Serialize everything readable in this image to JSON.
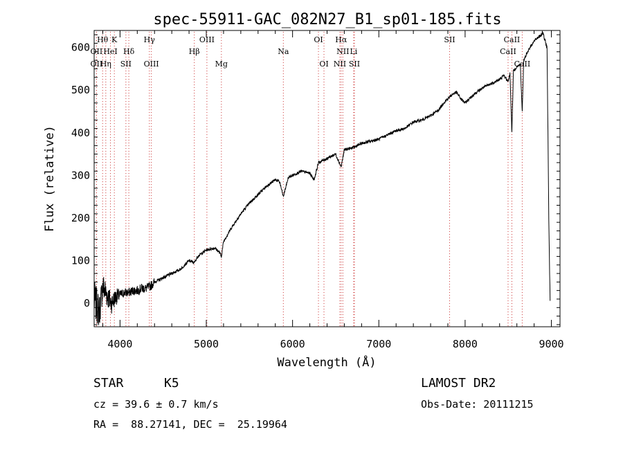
{
  "chart_data": {
    "type": "line",
    "title": "spec-55911-GAC_082N27_B1_sp01-185.fits",
    "xlabel": "Wavelength (Å)",
    "ylabel": "Flux (relative)",
    "xlim": [
      3700,
      9100
    ],
    "ylim": [
      -55,
      640
    ],
    "xticks": [
      4000,
      5000,
      6000,
      7000,
      8000,
      9000
    ],
    "yticks": [
      0,
      100,
      200,
      300,
      400,
      500,
      600
    ],
    "grid": false,
    "series": [
      {
        "x": [
          3700,
          3760,
          3800,
          3850,
          3900,
          3950,
          4000,
          4050,
          4100,
          4150,
          4200,
          4250,
          4300,
          4350,
          4400,
          4500,
          4600,
          4700,
          4800,
          4860,
          4900,
          5000,
          5100,
          5150,
          5175,
          5200,
          5300,
          5400,
          5500,
          5600,
          5700,
          5800,
          5850,
          5893,
          5950,
          6000,
          6100,
          6200,
          6250,
          6300,
          6350,
          6400,
          6500,
          6563,
          6600,
          6700,
          6800,
          6900,
          7000,
          7100,
          7200,
          7300,
          7400,
          7500,
          7600,
          7700,
          7750,
          7800,
          7850,
          7900,
          7950,
          8000,
          8100,
          8200,
          8300,
          8400,
          8450,
          8498,
          8520,
          8542,
          8560,
          8600,
          8640,
          8662,
          8680,
          8700,
          8750,
          8800,
          8850,
          8880,
          8900,
          8920,
          8950,
          8970,
          8985
        ],
        "y": [
          10,
          -20,
          40,
          20,
          0,
          15,
          20,
          25,
          25,
          30,
          30,
          35,
          35,
          40,
          50,
          60,
          70,
          80,
          100,
          95,
          110,
          125,
          130,
          120,
          110,
          145,
          180,
          210,
          235,
          255,
          275,
          290,
          285,
          250,
          295,
          300,
          310,
          305,
          290,
          330,
          335,
          340,
          350,
          320,
          360,
          365,
          375,
          380,
          385,
          395,
          405,
          410,
          425,
          430,
          440,
          455,
          470,
          480,
          490,
          495,
          480,
          470,
          490,
          505,
          515,
          525,
          535,
          520,
          540,
          400,
          545,
          555,
          560,
          450,
          570,
          580,
          600,
          615,
          625,
          630,
          635,
          620,
          600,
          200,
          10
        ]
      }
    ],
    "line_markers": [
      {
        "label": "Hθ",
        "wave": 3798,
        "row": 1
      },
      {
        "label": "OII",
        "wave": 3727,
        "row": 2
      },
      {
        "label": "HeI",
        "wave": 3889,
        "row": 2
      },
      {
        "label": "K",
        "wave": 3934,
        "row": 1
      },
      {
        "label": "Hδ",
        "wave": 4102,
        "row": 2
      },
      {
        "label": "Hγ",
        "wave": 4340,
        "row": 1
      },
      {
        "label": "OIII",
        "wave": 5007,
        "row": 1
      },
      {
        "label": "Hβ",
        "wave": 4861,
        "row": 2
      },
      {
        "label": "OI",
        "wave": 6300,
        "row": 1
      },
      {
        "label": "Hα",
        "wave": 6563,
        "row": 1
      },
      {
        "label": "NII",
        "wave": 6583,
        "row": 2
      },
      {
        "label": "Li",
        "wave": 6708,
        "row": 2
      },
      {
        "label": "SII",
        "wave": 7820,
        "row": 1
      },
      {
        "label": "CaII",
        "wave": 8542,
        "row": 1
      },
      {
        "label": "CaII",
        "wave": 8498,
        "row": 2
      },
      {
        "label": "OII",
        "wave": 3727,
        "row": 3
      },
      {
        "label": "Hη",
        "wave": 3835,
        "row": 3
      },
      {
        "label": "SII",
        "wave": 4068,
        "row": 3
      },
      {
        "label": "OIII",
        "wave": 4363,
        "row": 3
      },
      {
        "label": "Mg",
        "wave": 5175,
        "row": 3
      },
      {
        "label": "Na",
        "wave": 5893,
        "row": 2
      },
      {
        "label": "OI",
        "wave": 6364,
        "row": 3
      },
      {
        "label": "NII",
        "wave": 6548,
        "row": 3
      },
      {
        "label": "SII",
        "wave": 6717,
        "row": 3
      },
      {
        "label": "CaII",
        "wave": 8662,
        "row": 3
      }
    ],
    "line_color": "#000000",
    "marker_color": "#cc3333"
  },
  "info": {
    "class_label": "STAR",
    "subclass": "K5",
    "survey": "LAMOST DR2",
    "cz": "cz = 39.6 ± 0.7 km/s",
    "obs_date": "Obs-Date: 20111215",
    "radec": "RA =  88.27141, DEC =  25.19964"
  }
}
